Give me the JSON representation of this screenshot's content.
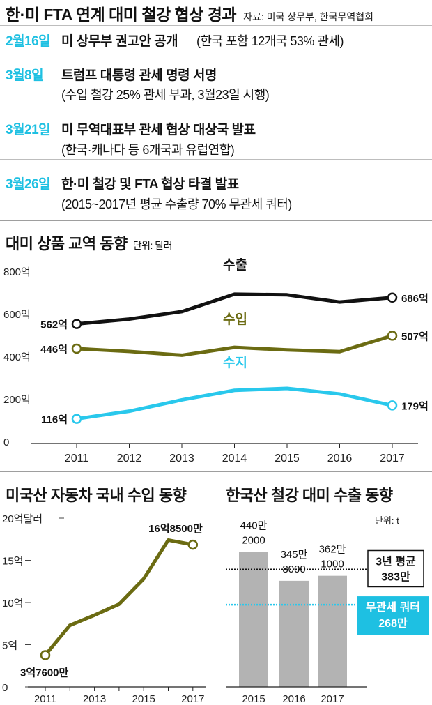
{
  "header": {
    "title": "한·미 FTA 연계 대미 철강 협상 경과",
    "source": "자료: 미국 상무부, 한국무역협회"
  },
  "timeline": [
    {
      "date": "2월16일",
      "headline": "미 상무부 권고안 공개",
      "detail": "(한국 포함 12개국 53% 관세)"
    },
    {
      "date": "3월8일",
      "headline": "트럼프 대통령 관세 명령 서명",
      "detail": "(수입 철강 25% 관세 부과, 3월23일 시행)"
    },
    {
      "date": "3월21일",
      "headline": "미 무역대표부 관세 협상 대상국 발표",
      "detail": "(한국·캐나다 등 6개국과 유럽연합)"
    },
    {
      "date": "3월26일",
      "headline": "한·미 철강 및 FTA 협상 타결 발표",
      "detail": "(2015~2017년 평균 수출량 70% 무관세 쿼터)"
    }
  ],
  "colors": {
    "accent": "#1ec0e2",
    "export_line": "#111111",
    "import_line": "#6b6b12",
    "balance_line": "#29c8ec",
    "bar": "#b3b3b3"
  },
  "chart_data": [
    {
      "type": "line",
      "title": "대미 상품 교역 동향",
      "unit": "단위: 달러",
      "x": [
        "2011",
        "2012",
        "2013",
        "2014",
        "2015",
        "2016",
        "2017"
      ],
      "y_ticks": [
        "800억",
        "600억",
        "400억",
        "200억",
        "0"
      ],
      "ylim": [
        0,
        800
      ],
      "series": [
        {
          "name": "수출",
          "values": [
            562,
            585,
            620,
            702,
            699,
            665,
            686
          ],
          "start_label": "562억",
          "end_label": "686억"
        },
        {
          "name": "수입",
          "values": [
            446,
            433,
            415,
            452,
            440,
            432,
            507
          ],
          "start_label": "446억",
          "end_label": "507억"
        },
        {
          "name": "수지",
          "values": [
            116,
            152,
            205,
            250,
            259,
            233,
            179
          ],
          "start_label": "116억",
          "end_label": "179억"
        }
      ]
    },
    {
      "type": "line",
      "title": "미국산 자동차 국내 수입 동향",
      "x": [
        2011,
        2012,
        2013,
        2014,
        2015,
        2016,
        2017
      ],
      "x_ticks": [
        "2011",
        "2013",
        "2015",
        "2017"
      ],
      "y_ticks": [
        "20억달러",
        "15억",
        "10억",
        "5억",
        "0"
      ],
      "ylim": [
        0,
        20
      ],
      "series": [
        {
          "name": "",
          "values": [
            3.76,
            7.3,
            8.5,
            9.8,
            12.8,
            17.4,
            16.85
          ],
          "start_label": "3억7600만",
          "end_label": "16억8500만"
        }
      ]
    },
    {
      "type": "bar",
      "title": "한국산 철강 대미 수출 동향",
      "unit": "단위: t",
      "categories": [
        "2015",
        "2016",
        "2017"
      ],
      "values": [
        4402000,
        3458000,
        3621000
      ],
      "value_labels": [
        [
          "440만",
          "2000"
        ],
        [
          "345만",
          "8000"
        ],
        [
          "362만",
          "1000"
        ]
      ],
      "ylim": [
        0,
        5500000
      ],
      "reference_lines": [
        {
          "value": 3830000,
          "label_lines": [
            "3년 평균",
            "383만"
          ],
          "style": "dotted-black"
        },
        {
          "value": 2680000,
          "label_lines": [
            "무관세 쿼터",
            "268만"
          ],
          "style": "dotted-cyan"
        }
      ]
    }
  ]
}
